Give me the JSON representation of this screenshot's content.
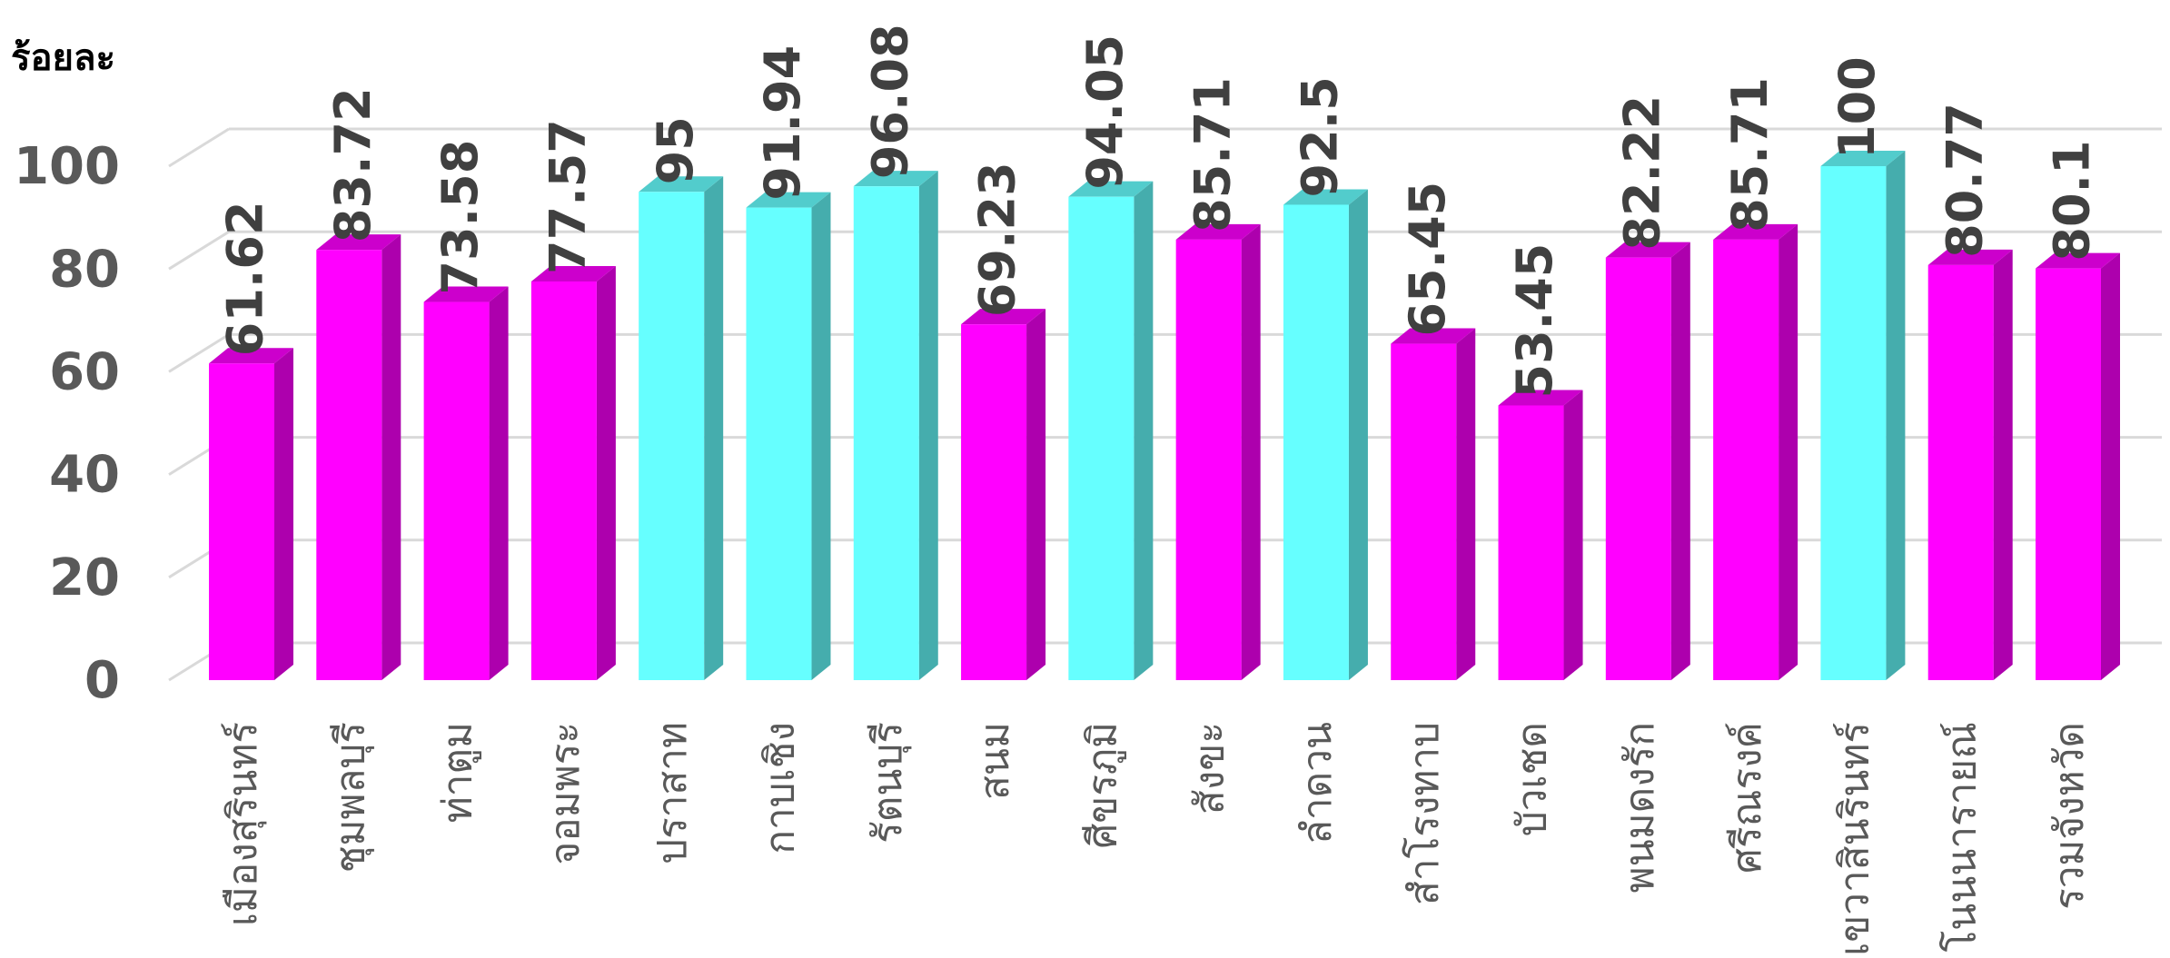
{
  "chart_data": {
    "type": "bar3d",
    "y_label": "ร้อยละ",
    "categories": [
      "เมืองสุรินทร์",
      "ชุมพลบุรี",
      "ท่าตูม",
      "จอมพระ",
      "ปราสาท",
      "กาบเชิง",
      "รัตนบุรี",
      "สนม",
      "ศีขรภูมิ",
      "สังขะ",
      "ลำดวน",
      "สำโรงทาบ",
      "บัวเชด",
      "พนมดงรัก",
      "ศรีณรงค์",
      "เขวาสินรินทร์",
      "โนนนารายณ์",
      "รวมจังหวัด"
    ],
    "values": [
      61.62,
      83.72,
      73.58,
      77.57,
      95,
      91.94,
      96.08,
      69.23,
      94.05,
      85.71,
      92.5,
      65.45,
      53.45,
      82.22,
      85.71,
      100,
      80.77,
      80.1
    ],
    "colors": [
      "#ff00ff",
      "#ff00ff",
      "#ff00ff",
      "#ff00ff",
      "#66ffff",
      "#66ffff",
      "#66ffff",
      "#ff00ff",
      "#66ffff",
      "#ff00ff",
      "#66ffff",
      "#ff00ff",
      "#ff00ff",
      "#ff00ff",
      "#ff00ff",
      "#66ffff",
      "#ff00ff",
      "#ff00ff"
    ],
    "ylim": [
      0,
      100
    ],
    "yticks": [
      0,
      20,
      40,
      60,
      80,
      100
    ],
    "grid": true
  }
}
